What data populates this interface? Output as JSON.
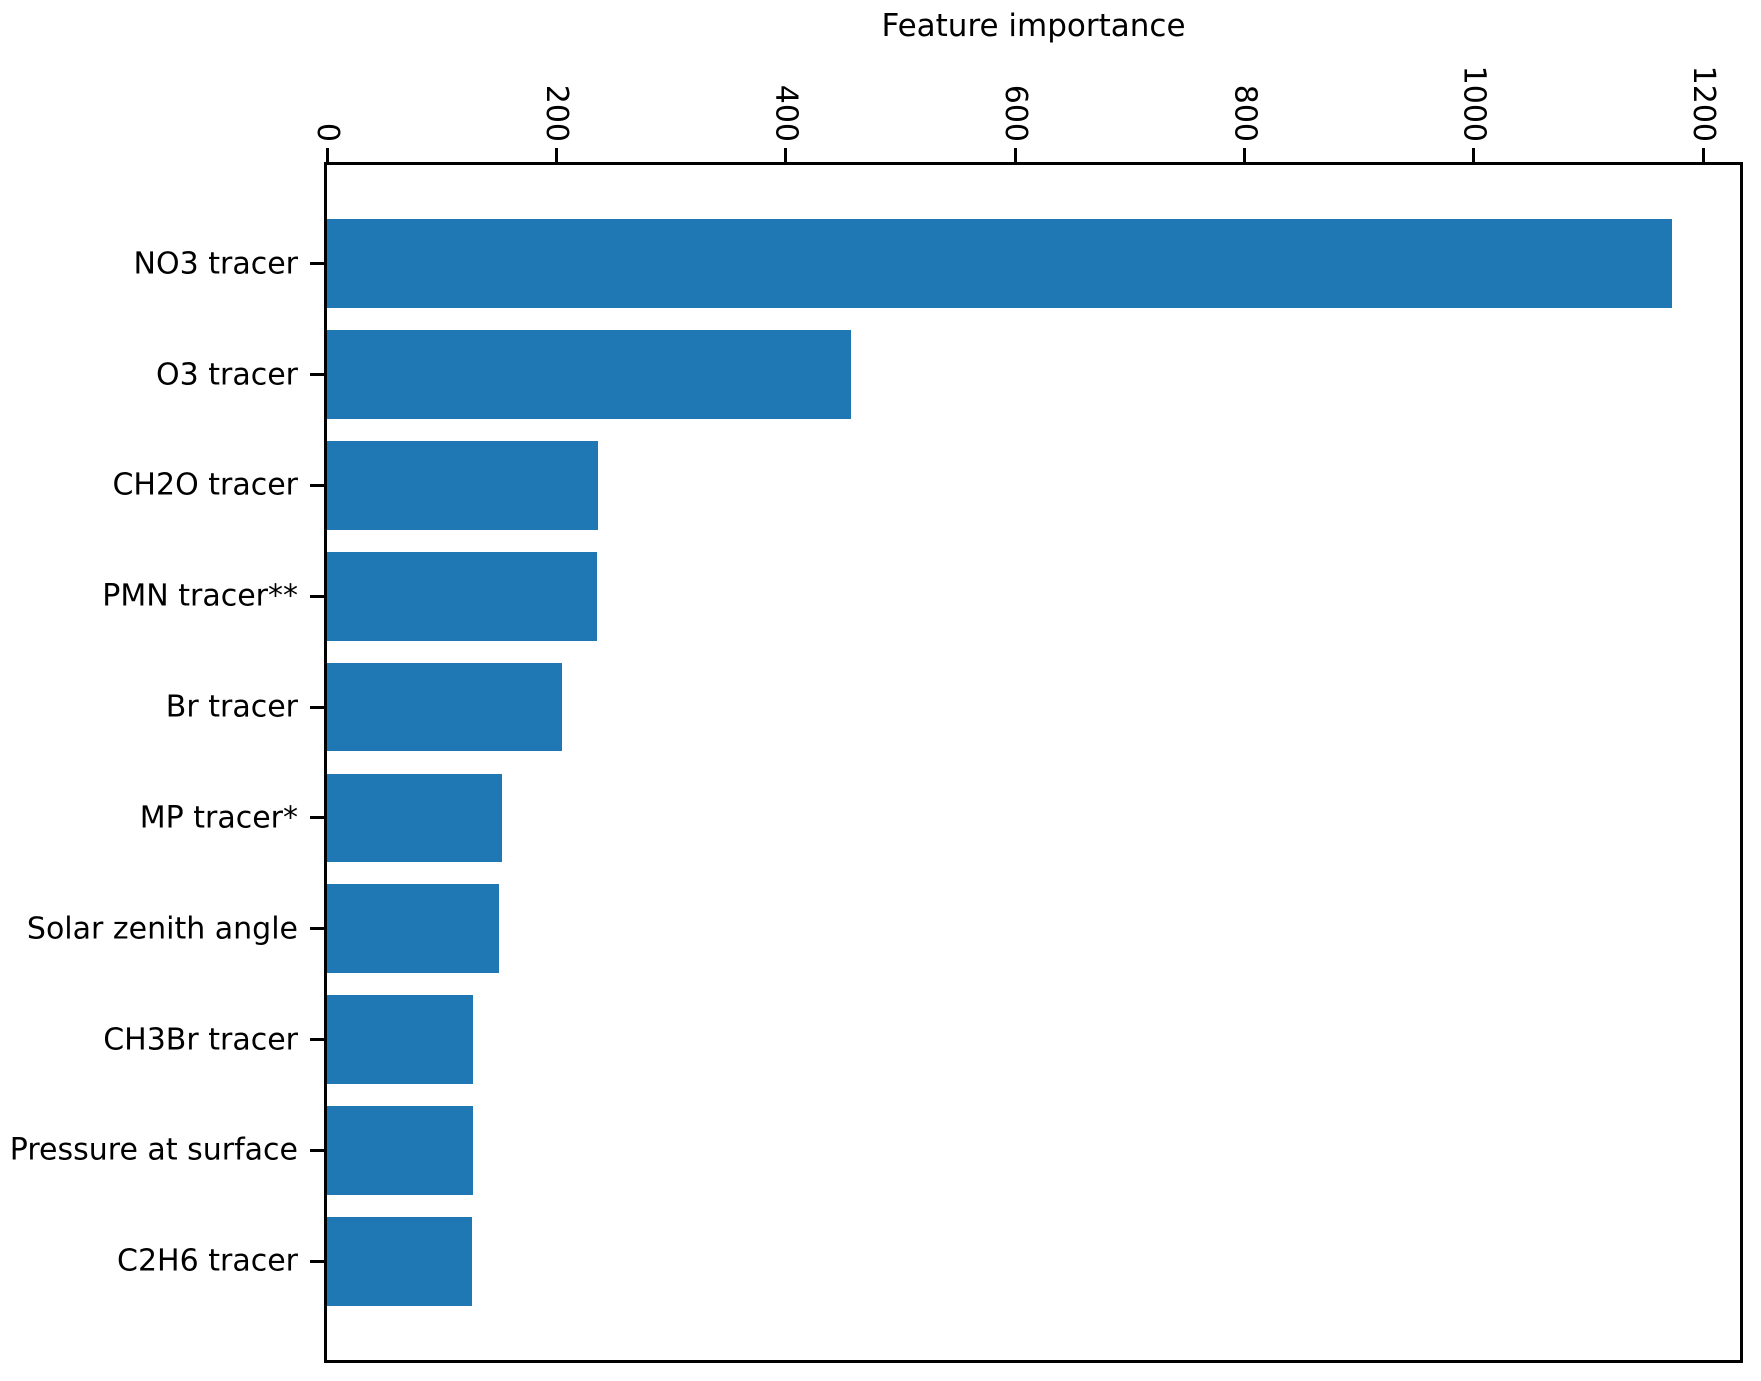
{
  "figure": {
    "background": "#ffffff"
  },
  "chart_data": {
    "type": "bar",
    "orientation": "horizontal",
    "title": "Feature importance",
    "categories": [
      "NO3 tracer",
      "O3 tracer",
      "CH2O tracer",
      "PMN tracer**",
      "Br tracer",
      "MP tracer*",
      "Solar zenith angle",
      "CH3Br tracer",
      "Pressure at surface",
      "C2H6 tracer"
    ],
    "values": [
      1173,
      457,
      236,
      235,
      205,
      153,
      150,
      127,
      127,
      126
    ],
    "xlabel": "",
    "ylabel": "",
    "xlim": [
      0,
      1232
    ],
    "x_ticks": [
      0,
      200,
      400,
      600,
      800,
      1000,
      1200
    ],
    "x_tick_rotation_deg": 90,
    "x_axis_position": "top",
    "grid": false,
    "legend": false,
    "bar_color": "#1f77b4",
    "spine_color": "#000000",
    "text_color": "#000000"
  }
}
